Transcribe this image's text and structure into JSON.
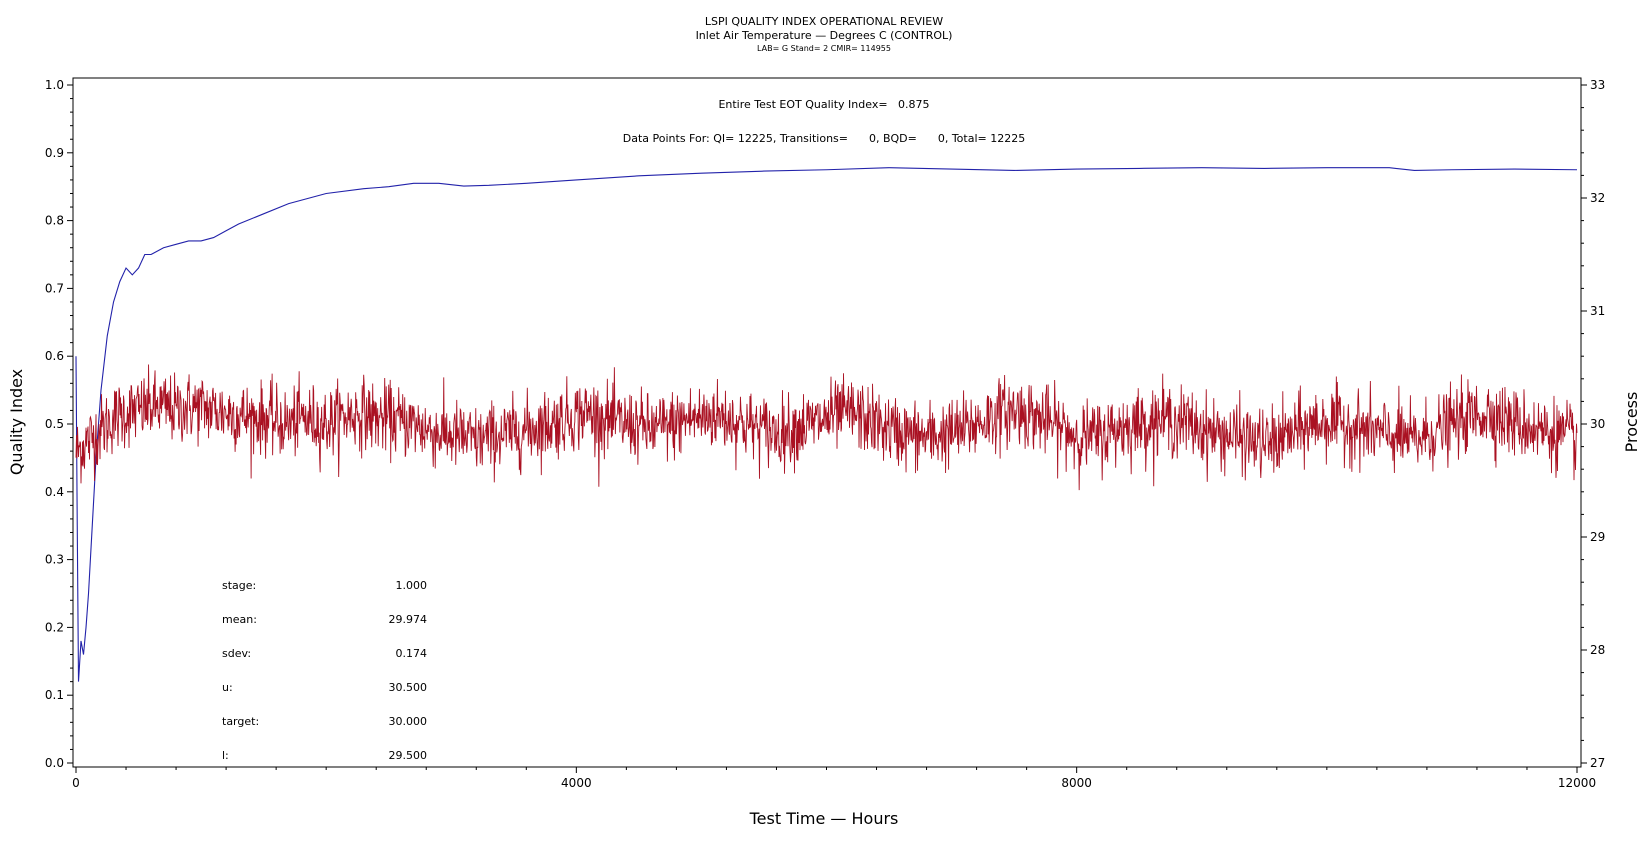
{
  "chart_data": {
    "type": "line",
    "title": "LSPI QUALITY INDEX OPERATIONAL REVIEW",
    "subtitle": "Inlet Air Temperature — Degrees C (CONTROL)",
    "subtitle2": "LAB= G Stand= 2 CMIR= 114955",
    "annotation_qi": "Entire Test EOT Quality Index=   0.875",
    "annotation_points": "Data Points For: QI= 12225, Transitions=      0, BQD=      0, Total= 12225",
    "xlabel": "Test Time — Hours",
    "ylabel": "Quality Index",
    "y2label": "Process",
    "xlim": [
      0,
      12000
    ],
    "ylim": [
      0.0,
      1.0
    ],
    "y2lim": [
      27,
      33
    ],
    "x_ticks": [
      "0",
      "4000",
      "8000",
      "12000"
    ],
    "y_ticks": [
      "0.0",
      "0.1",
      "0.2",
      "0.3",
      "0.4",
      "0.5",
      "0.6",
      "0.7",
      "0.8",
      "0.9",
      "1.0"
    ],
    "y2_ticks": [
      "27",
      "28",
      "29",
      "30",
      "31",
      "32",
      "33"
    ],
    "grid": false,
    "series": [
      {
        "color": "#2222aa",
        "axis": "left",
        "x": [
          0,
          10,
          20,
          40,
          60,
          80,
          100,
          130,
          160,
          200,
          250,
          300,
          350,
          400,
          450,
          500,
          550,
          600,
          700,
          800,
          900,
          1000,
          1100,
          1200,
          1300,
          1500,
          1700,
          2000,
          2300,
          2500,
          2700,
          2900,
          3100,
          3300,
          3600,
          4000,
          4500,
          5000,
          5500,
          6000,
          6500,
          7000,
          7500,
          8000,
          8500,
          9000,
          9500,
          10000,
          10500,
          10700,
          11000,
          11500,
          12000
        ],
        "y": [
          0.6,
          0.35,
          0.12,
          0.18,
          0.16,
          0.2,
          0.25,
          0.35,
          0.45,
          0.55,
          0.63,
          0.68,
          0.71,
          0.73,
          0.72,
          0.73,
          0.75,
          0.75,
          0.76,
          0.765,
          0.77,
          0.77,
          0.775,
          0.785,
          0.795,
          0.81,
          0.825,
          0.84,
          0.847,
          0.85,
          0.855,
          0.855,
          0.851,
          0.852,
          0.855,
          0.86,
          0.866,
          0.87,
          0.873,
          0.875,
          0.878,
          0.876,
          0.874,
          0.876,
          0.877,
          0.878,
          0.877,
          0.878,
          0.878,
          0.874,
          0.875,
          0.876,
          0.875
        ]
      },
      {
        "color": "#aa1122",
        "axis": "right",
        "x": [
          0,
          100,
          200,
          300,
          400,
          500,
          600,
          700,
          800,
          900,
          1000,
          1100,
          1200,
          1300,
          1400,
          1500,
          1600,
          1700,
          1800,
          1900,
          2000,
          2100,
          2200,
          2300,
          2400,
          2500,
          2600,
          2700,
          2800,
          2900,
          3000,
          3100,
          3200,
          3300,
          3400,
          3500,
          3600,
          3700,
          3800,
          3900,
          4000,
          4100,
          4200,
          4300,
          4400,
          4500,
          4600,
          4700,
          4800,
          4900,
          5000,
          5100,
          5200,
          5300,
          5400,
          5500,
          5600,
          5700,
          5800,
          5900,
          6000,
          6100,
          6200,
          6300,
          6400,
          6500,
          6600,
          6700,
          6800,
          6900,
          7000,
          7100,
          7200,
          7300,
          7400,
          7500,
          7600,
          7700,
          7800,
          7900,
          8000,
          8100,
          8200,
          8300,
          8400,
          8500,
          8600,
          8700,
          8800,
          8900,
          9000,
          9100,
          9200,
          9300,
          9400,
          9500,
          9600,
          9700,
          9800,
          9900,
          10000,
          10100,
          10200,
          10300,
          10400,
          10500,
          10600,
          10700,
          10800,
          10900,
          11000,
          11100,
          11200,
          11300,
          11400,
          11500,
          11600,
          11700,
          11800,
          11900,
          12000
        ],
        "y": [
          29.75,
          29.85,
          29.95,
          30.05,
          30.1,
          30.12,
          30.15,
          30.15,
          30.12,
          30.15,
          30.15,
          30.12,
          30.1,
          30.08,
          30.05,
          30.05,
          30.02,
          30.0,
          30.05,
          30.03,
          30.0,
          30.05,
          30.08,
          30.1,
          30.05,
          30.05,
          30.02,
          30.0,
          29.95,
          29.92,
          29.9,
          29.88,
          29.85,
          29.88,
          29.9,
          29.92,
          29.95,
          29.98,
          30.0,
          30.05,
          30.08,
          30.1,
          30.05,
          30.02,
          30.0,
          29.98,
          29.95,
          29.98,
          30.0,
          30.05,
          30.05,
          30.08,
          30.05,
          30.02,
          29.98,
          29.95,
          29.92,
          29.95,
          29.98,
          30.0,
          30.05,
          30.08,
          30.1,
          30.05,
          30.0,
          29.95,
          29.92,
          29.9,
          29.88,
          29.9,
          29.92,
          29.95,
          30.0,
          30.05,
          30.1,
          30.12,
          30.1,
          30.05,
          30.0,
          29.95,
          29.9,
          29.88,
          29.9,
          29.95,
          29.98,
          30.0,
          30.02,
          30.05,
          30.02,
          30.0,
          29.95,
          29.92,
          29.9,
          29.88,
          29.85,
          29.82,
          29.85,
          29.9,
          29.95,
          30.0,
          30.02,
          30.0,
          29.98,
          29.95,
          29.92,
          29.9,
          29.88,
          29.85,
          29.9,
          29.95,
          30.0,
          30.05,
          30.08,
          30.1,
          30.05,
          30.0,
          29.98,
          29.95,
          29.92,
          29.9,
          29.85
        ],
        "noise": 0.17
      }
    ],
    "stats_labels": [
      "stage:",
      "mean:",
      "sdev:",
      "u:",
      "target:",
      "l:"
    ],
    "stats_values": [
      "1.000",
      "29.974",
      "0.174",
      "30.500",
      "30.000",
      "29.500"
    ]
  }
}
